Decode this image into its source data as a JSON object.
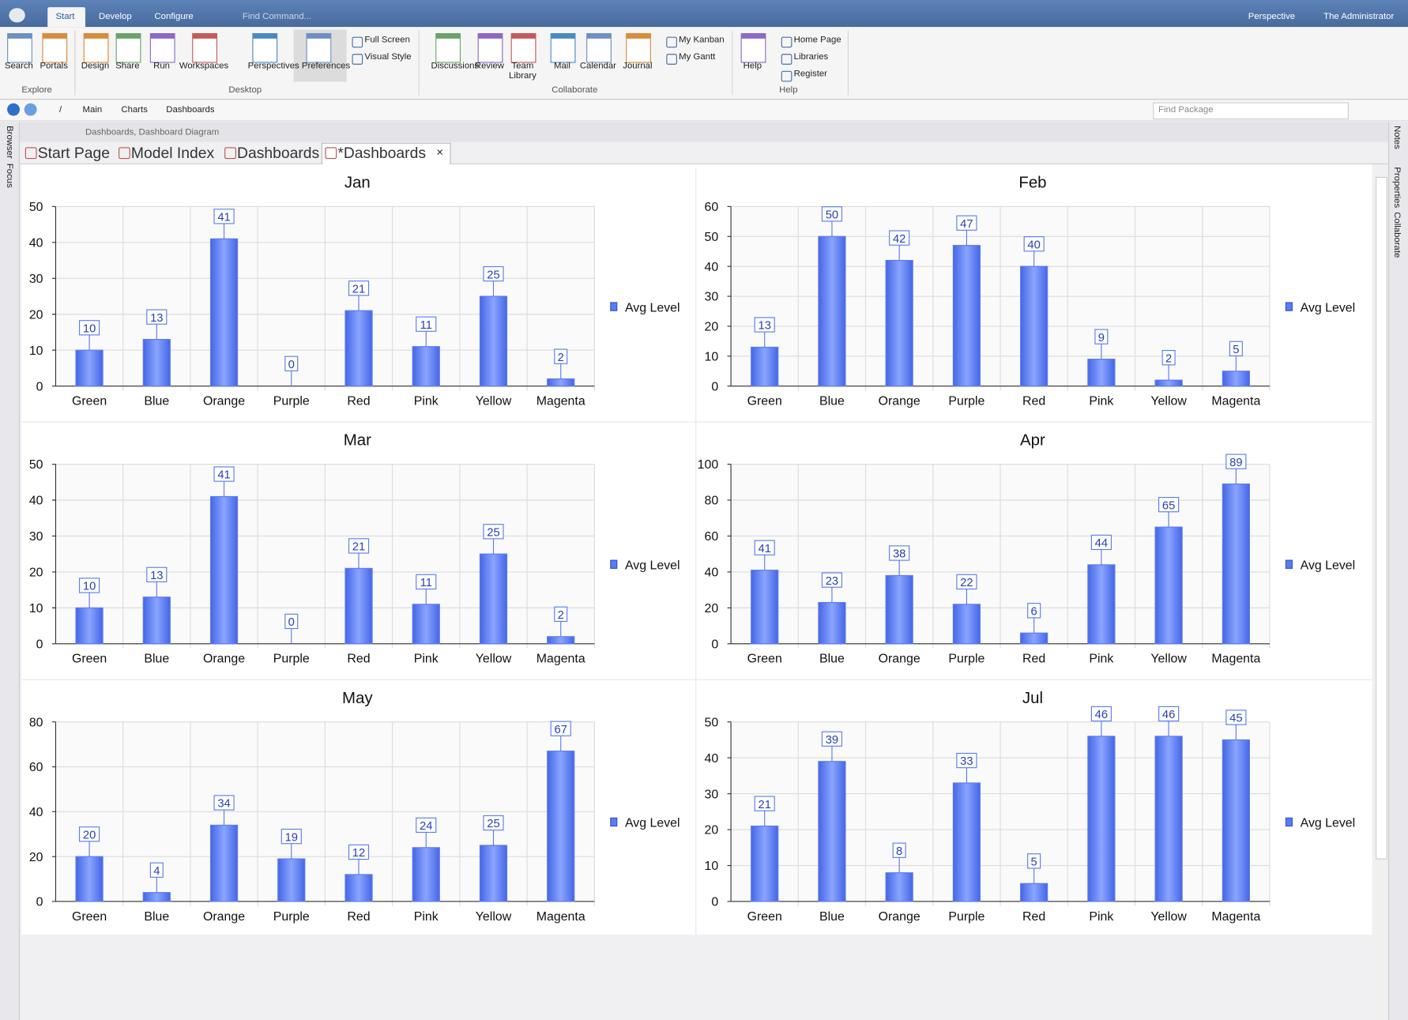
{
  "app": {
    "menu_tabs": [
      "Start",
      "Develop",
      "Configure"
    ],
    "find_command": "Find Command...",
    "perspective": "Perspective",
    "user": "The Administrator"
  },
  "ribbon": {
    "groups": [
      {
        "name": "Explore",
        "buttons": [
          "Search",
          "Portals"
        ]
      },
      {
        "name": "Desktop",
        "buttons": [
          "Design",
          "Share",
          "Run",
          "Workspaces",
          "Perspectives",
          "Preferences"
        ],
        "small_buttons": [
          "Full Screen",
          "Visual Style"
        ]
      },
      {
        "name": "Collaborate",
        "buttons": [
          "Discussions",
          "Review",
          "Team Library",
          "Mail",
          "Calendar",
          "Journal"
        ],
        "small_buttons": [
          "My Kanban",
          "My Gantt"
        ]
      },
      {
        "name": "Help",
        "buttons": [
          "Help"
        ],
        "small_buttons": [
          "Home Page",
          "Libraries",
          "Register"
        ]
      }
    ]
  },
  "breadcrumb": [
    "/",
    "Main",
    "Charts",
    "Dashboards"
  ],
  "find_package": "Find Package",
  "side_left": [
    "Browser",
    "Focus"
  ],
  "side_right": [
    "Notes",
    "Properties",
    "Collaborate"
  ],
  "diagram_path": "Dashboards,  Dashboard Diagram",
  "doc_tabs": [
    "Start Page",
    "Model Index",
    "Dashboards",
    "*Dashboards"
  ],
  "chart_data": [
    {
      "type": "bar",
      "title": "Jan",
      "categories": [
        "Green",
        "Blue",
        "Orange",
        "Purple",
        "Red",
        "Pink",
        "Yellow",
        "Magenta"
      ],
      "series": [
        {
          "name": "Avg Level",
          "color": "#5b7cf0",
          "values": [
            10,
            13,
            41,
            0,
            21,
            11,
            25,
            2
          ]
        }
      ],
      "ylim": [
        0,
        50
      ],
      "yticks": [
        0,
        10,
        20,
        30,
        40,
        50
      ],
      "grid": true,
      "legend": "right"
    },
    {
      "type": "bar",
      "title": "Feb",
      "categories": [
        "Green",
        "Blue",
        "Orange",
        "Purple",
        "Red",
        "Pink",
        "Yellow",
        "Magenta"
      ],
      "series": [
        {
          "name": "Avg Level",
          "color": "#5b7cf0",
          "values": [
            13,
            50,
            42,
            47,
            40,
            9,
            2,
            5
          ]
        }
      ],
      "ylim": [
        0,
        60
      ],
      "yticks": [
        0,
        10,
        20,
        30,
        40,
        50,
        60
      ],
      "grid": true,
      "legend": "right"
    },
    {
      "type": "bar",
      "title": "Mar",
      "categories": [
        "Green",
        "Blue",
        "Orange",
        "Purple",
        "Red",
        "Pink",
        "Yellow",
        "Magenta"
      ],
      "series": [
        {
          "name": "Avg Level",
          "color": "#5b7cf0",
          "values": [
            10,
            13,
            41,
            0,
            21,
            11,
            25,
            2
          ]
        }
      ],
      "ylim": [
        0,
        50
      ],
      "yticks": [
        0,
        10,
        20,
        30,
        40,
        50
      ],
      "grid": true,
      "legend": "right"
    },
    {
      "type": "bar",
      "title": "Apr",
      "categories": [
        "Green",
        "Blue",
        "Orange",
        "Purple",
        "Red",
        "Pink",
        "Yellow",
        "Magenta"
      ],
      "series": [
        {
          "name": "Avg Level",
          "color": "#5b7cf0",
          "values": [
            41,
            23,
            38,
            22,
            6,
            44,
            65,
            89
          ]
        }
      ],
      "ylim": [
        0,
        100
      ],
      "yticks": [
        0,
        20,
        40,
        60,
        80,
        100
      ],
      "grid": true,
      "legend": "right"
    },
    {
      "type": "bar",
      "title": "May",
      "categories": [
        "Green",
        "Blue",
        "Orange",
        "Purple",
        "Red",
        "Pink",
        "Yellow",
        "Magenta"
      ],
      "series": [
        {
          "name": "Avg Level",
          "color": "#5b7cf0",
          "values": [
            20,
            4,
            34,
            19,
            12,
            24,
            25,
            67
          ]
        }
      ],
      "ylim": [
        0,
        80
      ],
      "yticks": [
        0,
        20,
        40,
        60,
        80
      ],
      "grid": true,
      "legend": "right"
    },
    {
      "type": "bar",
      "title": "Jul",
      "categories": [
        "Green",
        "Blue",
        "Orange",
        "Purple",
        "Red",
        "Pink",
        "Yellow",
        "Magenta"
      ],
      "series": [
        {
          "name": "Avg Level",
          "color": "#5b7cf0",
          "values": [
            21,
            39,
            8,
            33,
            5,
            46,
            46,
            45
          ]
        }
      ],
      "ylim": [
        0,
        50
      ],
      "yticks": [
        0,
        10,
        20,
        30,
        40,
        50
      ],
      "grid": true,
      "legend": "right"
    }
  ]
}
